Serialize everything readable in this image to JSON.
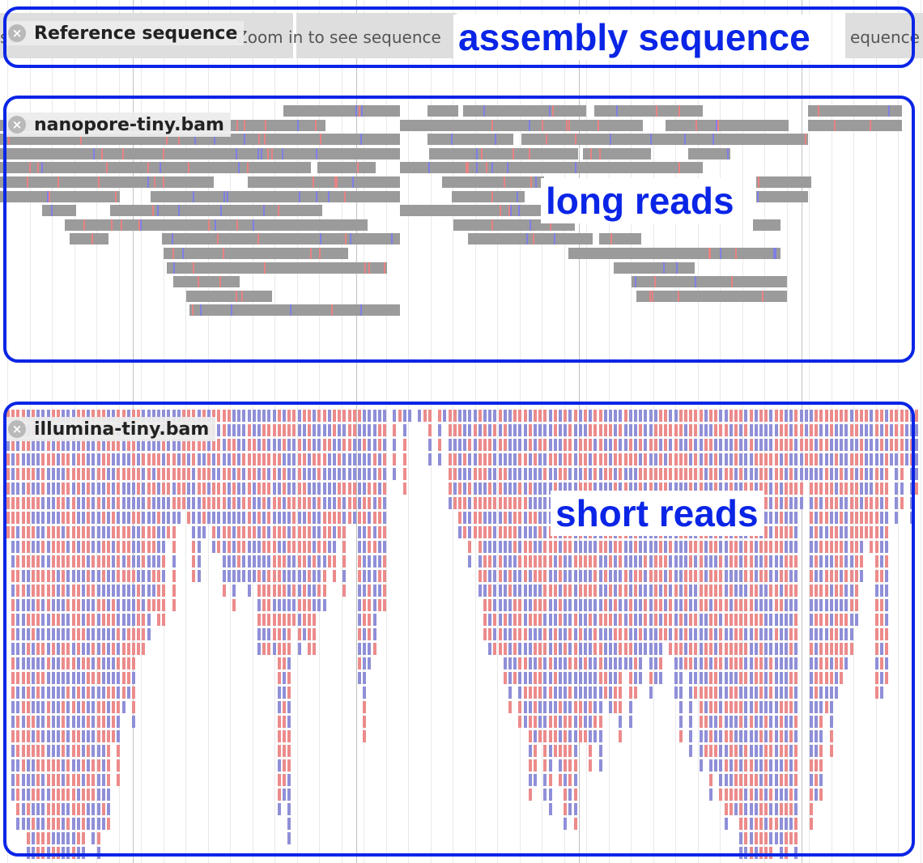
{
  "tracks": {
    "reference": {
      "label": "Reference sequence",
      "message": "Zoom in to see sequence",
      "fragments": [
        "se",
        "Zoom in to see sequence",
        "equence"
      ]
    },
    "nanopore": {
      "label": "nanopore-tiny.bam"
    },
    "illumina": {
      "label": "illumina-tiny.bam"
    }
  },
  "annotations": {
    "assembly": "assembly sequence",
    "long_reads": "long reads",
    "short_reads": "short reads"
  },
  "icons": {
    "close": "close-icon"
  },
  "colors": {
    "callout": "#0a25e6",
    "long_read": "#9b9b9b",
    "forward_strand": "#ec8b8b",
    "reverse_strand": "#8f8fd8",
    "mismatch_red": "#e88282",
    "mismatch_blue": "#7f7fe6"
  }
}
